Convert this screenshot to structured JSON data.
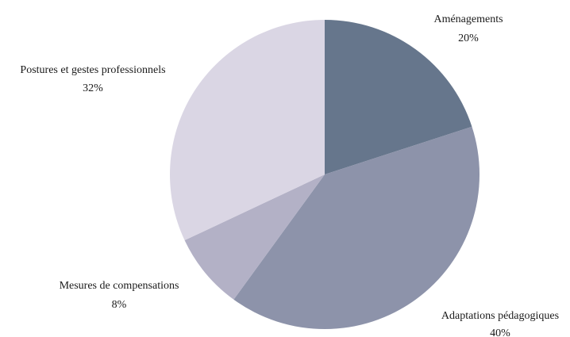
{
  "chart_data": {
    "type": "pie",
    "start_angle_deg": 0,
    "direction": "clockwise",
    "slices": [
      {
        "label": "Aménagements",
        "value": 20,
        "value_label": "20%",
        "color": "#66768c"
      },
      {
        "label": "Adaptations pédagogiques",
        "value": 40,
        "value_label": "40%",
        "color": "#8d93aa"
      },
      {
        "label": "Mesures de compensations",
        "value": 8,
        "value_label": "8%",
        "color": "#b3b1c6"
      },
      {
        "label": "Postures et gestes professionnels",
        "value": 32,
        "value_label": "32%",
        "color": "#dad6e4"
      }
    ]
  }
}
